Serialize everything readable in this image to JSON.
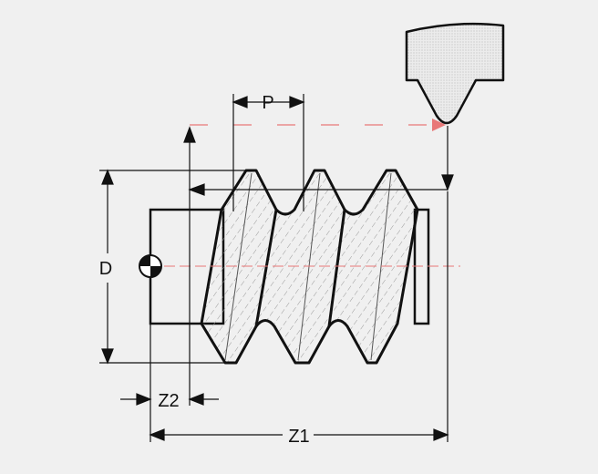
{
  "labels": {
    "pitch": "P",
    "diameter": "D",
    "z2": "Z2",
    "z1": "Z1"
  },
  "colors": {
    "background": "#f0f0f0",
    "outline": "#111111",
    "dimension": "#111111",
    "path_dash": "#e87878",
    "hatch": "#9a9a9a",
    "tool_fill": "#e4e4e4"
  },
  "icons": {
    "origin": "datum-origin-icon",
    "tool": "threading-tool-icon"
  }
}
